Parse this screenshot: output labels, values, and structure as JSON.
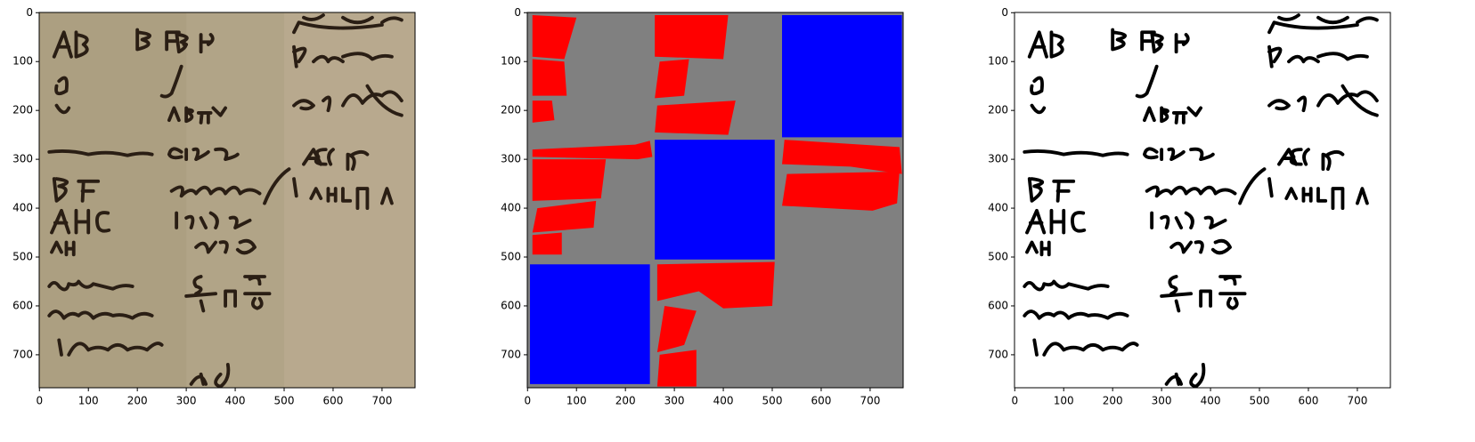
{
  "chart_data": [
    {
      "type": "image",
      "xlim": [
        -0.5,
        767.5
      ],
      "ylim": [
        767.5,
        -0.5
      ],
      "xticks": [
        0,
        100,
        200,
        300,
        400,
        500,
        600,
        700
      ],
      "yticks": [
        0,
        100,
        200,
        300,
        400,
        500,
        600,
        700
      ]
    },
    {
      "type": "image",
      "xlim": [
        -0.5,
        767.5
      ],
      "ylim": [
        767.5,
        -0.5
      ],
      "xticks": [
        0,
        100,
        200,
        300,
        400,
        500,
        600,
        700
      ],
      "yticks": [
        0,
        100,
        200,
        300,
        400,
        500,
        600,
        700
      ]
    },
    {
      "type": "image",
      "xlim": [
        -0.5,
        767.5
      ],
      "ylim": [
        767.5,
        -0.5
      ],
      "xticks": [
        0,
        100,
        200,
        300,
        400,
        500,
        600,
        700
      ],
      "yticks": [
        0,
        100,
        200,
        300,
        400,
        500,
        600,
        700
      ]
    }
  ]
}
